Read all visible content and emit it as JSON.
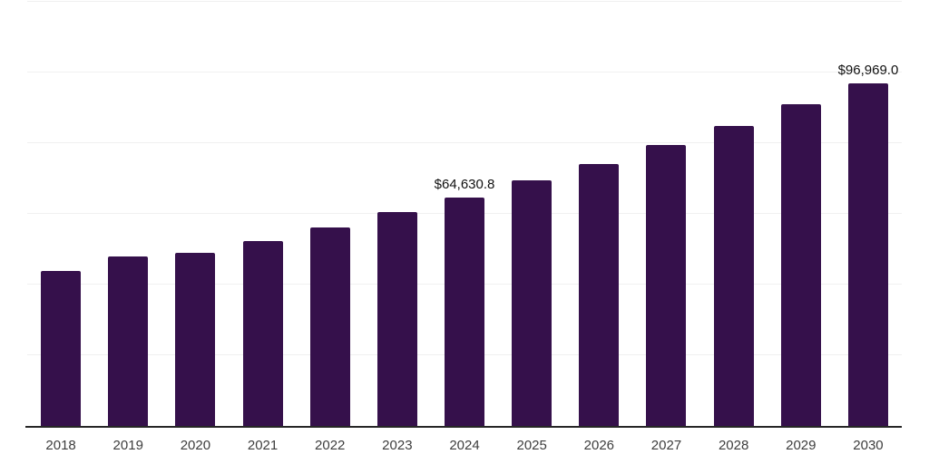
{
  "chart_data": {
    "type": "bar",
    "title": "",
    "xlabel": "",
    "ylabel": "",
    "categories": [
      "2018",
      "2019",
      "2020",
      "2021",
      "2022",
      "2023",
      "2024",
      "2025",
      "2026",
      "2027",
      "2028",
      "2029",
      "2030"
    ],
    "values": [
      43900,
      47870,
      48900,
      52300,
      56150,
      60500,
      64630.8,
      69400,
      74180,
      79490,
      84950,
      91000,
      96969.0
    ],
    "data_labels": {
      "2024": "$64,630.8",
      "2030": "$96,969.0"
    },
    "ylim": [
      0,
      120000
    ],
    "gridline_step": 20000,
    "grid": "horizontal only, no y-axis tick labels",
    "legend": "none"
  },
  "colors": {
    "bar_fill": "#35104b",
    "gridline": "#f0f0f0",
    "axis_line": "#262626",
    "tick_label": "#3d3d3d",
    "data_label": "#111111",
    "background": "#ffffff"
  }
}
